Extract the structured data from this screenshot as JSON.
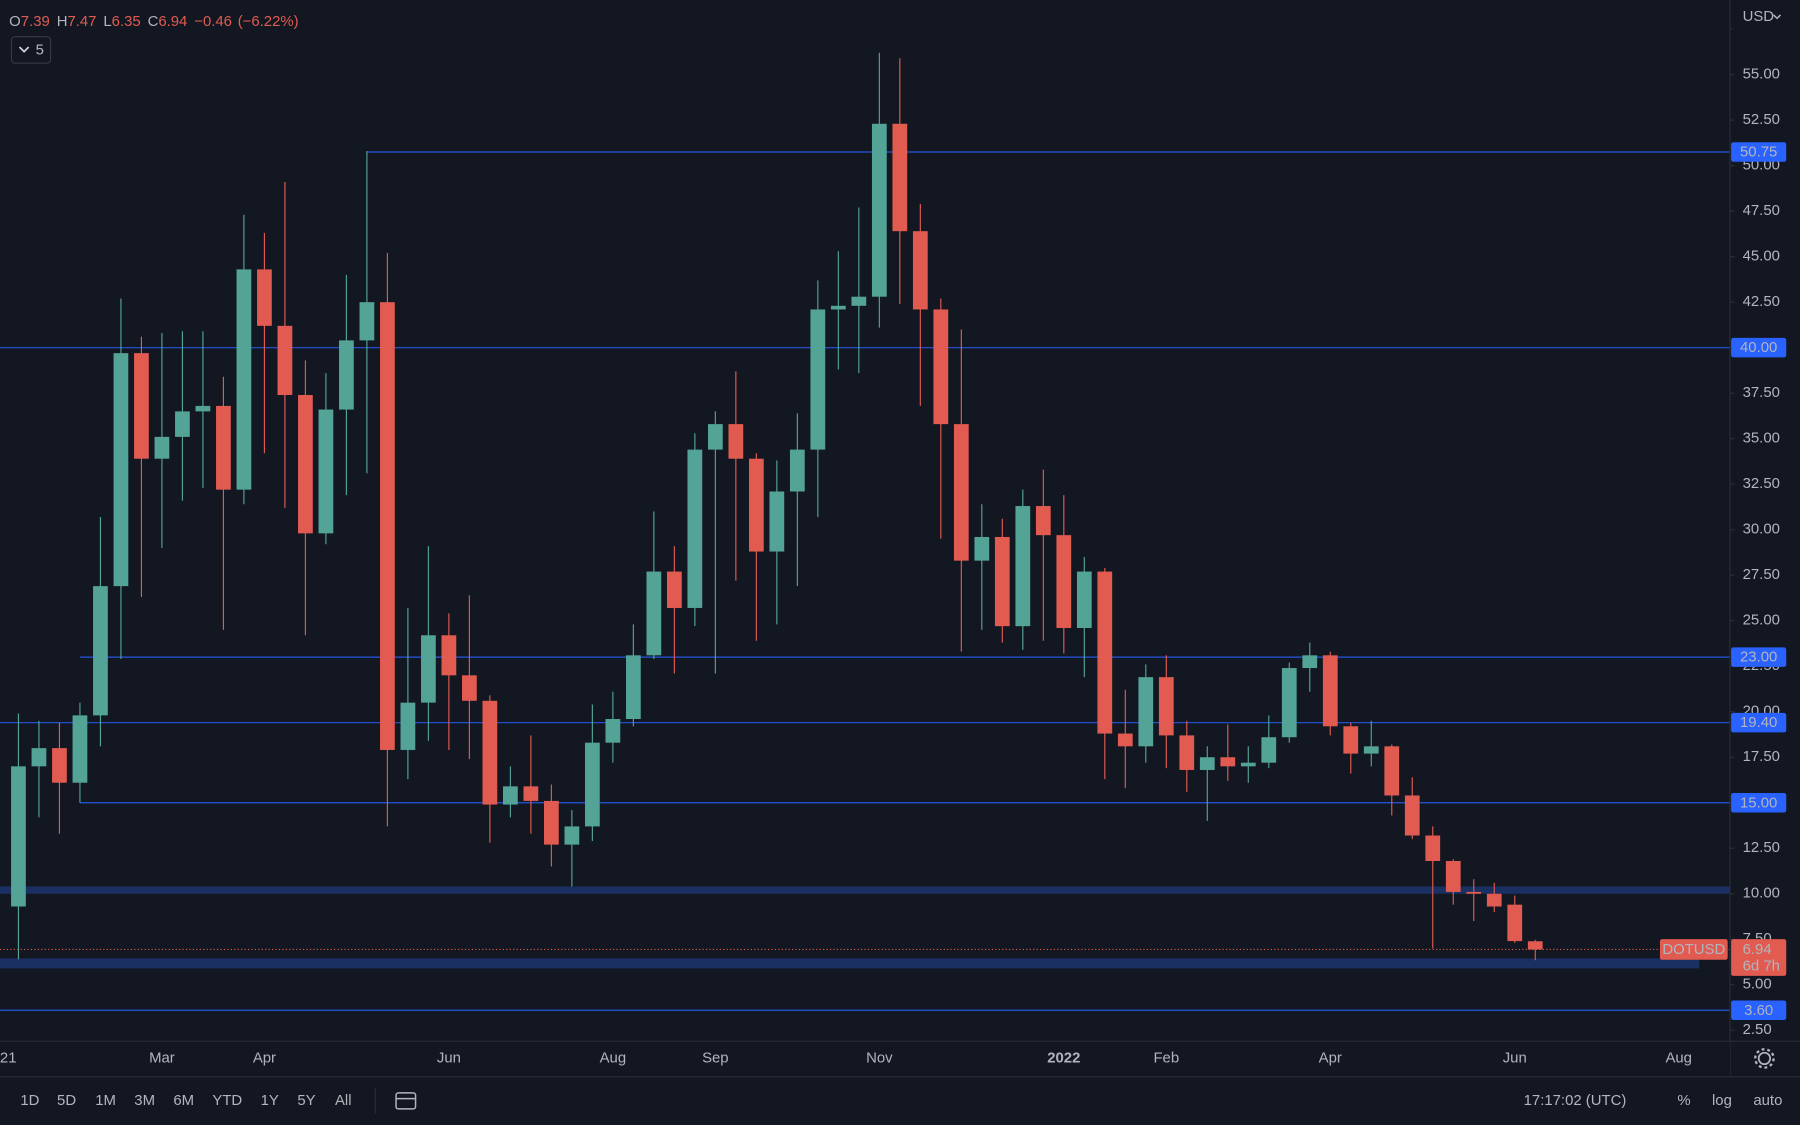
{
  "chart_data": {
    "type": "candlestick",
    "symbol": "DOTUSD",
    "currency": "USD",
    "countdown": "6d 7h",
    "collapsed_indicators": 5,
    "legend_keys": [
      "O",
      "H",
      "L",
      "C"
    ],
    "change": {
      "value": -0.46,
      "label": "−0.46"
    },
    "change_pct": {
      "value": -6.22,
      "label": "(−6.22%)"
    },
    "green": "#53a397",
    "red": "#e15b51",
    "level_color": "#2962ff",
    "open": [
      9.3,
      17.0,
      18.0,
      16.1,
      19.8,
      26.9,
      39.7,
      33.9,
      35.1,
      36.5,
      36.8,
      32.2,
      44.3,
      41.2,
      37.4,
      29.8,
      36.6,
      40.4,
      42.5,
      17.9,
      20.5,
      24.2,
      22.0,
      20.6,
      14.9,
      15.9,
      15.1,
      12.7,
      13.7,
      18.3,
      19.6,
      23.1,
      27.7,
      25.7,
      34.4,
      35.8,
      33.9,
      28.8,
      32.1,
      34.4,
      42.1,
      42.3,
      42.8,
      52.3,
      46.4,
      42.1,
      35.8,
      28.3,
      29.6,
      24.7,
      31.3,
      29.7,
      24.6,
      27.7,
      18.8,
      18.1,
      21.9,
      18.7,
      16.8,
      17.5,
      17.0,
      17.2,
      18.6,
      22.4,
      23.1,
      19.2,
      17.7,
      18.1,
      15.4,
      13.2,
      11.8,
      10.1,
      10.0,
      9.4,
      7.39
    ],
    "high": [
      19.9,
      19.5,
      19.4,
      20.5,
      30.7,
      42.7,
      40.6,
      40.8,
      40.9,
      40.9,
      38.4,
      47.3,
      46.3,
      49.1,
      39.3,
      38.6,
      44.0,
      50.8,
      45.2,
      25.7,
      29.1,
      25.4,
      26.4,
      20.9,
      17.0,
      18.7,
      16.0,
      14.6,
      20.4,
      21.1,
      24.8,
      31.0,
      29.1,
      35.3,
      36.5,
      38.7,
      34.2,
      33.8,
      36.4,
      43.7,
      45.3,
      47.7,
      56.2,
      55.9,
      47.9,
      42.7,
      41.0,
      31.4,
      30.6,
      32.2,
      33.3,
      31.9,
      28.5,
      27.9,
      21.2,
      22.6,
      23.1,
      19.5,
      18.1,
      19.3,
      18.1,
      19.8,
      22.7,
      23.8,
      23.3,
      19.4,
      19.5,
      18.2,
      16.4,
      13.7,
      11.9,
      10.8,
      10.6,
      9.9,
      7.47
    ],
    "low": [
      6.4,
      14.2,
      13.3,
      15.0,
      18.1,
      22.9,
      26.3,
      29.0,
      31.6,
      32.3,
      24.5,
      31.4,
      34.2,
      31.2,
      24.2,
      29.2,
      31.9,
      33.1,
      13.7,
      16.3,
      18.4,
      17.9,
      17.4,
      12.8,
      14.2,
      13.3,
      11.5,
      10.4,
      12.9,
      17.2,
      19.2,
      22.9,
      22.1,
      24.7,
      22.1,
      27.2,
      23.9,
      24.8,
      26.9,
      30.7,
      38.8,
      38.6,
      41.1,
      42.4,
      36.8,
      29.5,
      23.3,
      24.5,
      23.8,
      23.4,
      23.9,
      23.2,
      21.9,
      16.3,
      15.8,
      17.2,
      16.9,
      15.6,
      14.0,
      16.2,
      16.1,
      16.9,
      18.3,
      21.1,
      18.7,
      16.6,
      17.0,
      14.3,
      13.0,
      7.0,
      9.4,
      8.5,
      9.0,
      7.3,
      6.35
    ],
    "close": [
      17.0,
      18.0,
      16.1,
      19.8,
      26.9,
      39.7,
      33.9,
      35.1,
      36.5,
      36.8,
      32.2,
      44.3,
      41.2,
      37.4,
      29.8,
      36.6,
      40.4,
      42.5,
      17.9,
      20.5,
      24.2,
      22.0,
      20.6,
      14.9,
      15.9,
      15.1,
      12.7,
      13.7,
      18.3,
      19.6,
      23.1,
      27.7,
      25.7,
      34.4,
      35.8,
      33.9,
      28.8,
      32.1,
      34.4,
      42.1,
      42.3,
      42.8,
      52.3,
      46.4,
      42.1,
      35.8,
      28.3,
      29.6,
      24.7,
      31.3,
      29.7,
      24.6,
      27.7,
      18.8,
      18.1,
      21.9,
      18.7,
      16.8,
      17.5,
      17.0,
      17.2,
      18.6,
      22.4,
      23.1,
      19.2,
      17.7,
      18.1,
      15.4,
      13.2,
      11.8,
      10.1,
      10.0,
      9.3,
      7.4,
      6.94
    ],
    "xlim": [
      -0.9,
      83.5
    ],
    "xticks": [
      {
        "value": -0.5,
        "label": "21"
      },
      {
        "value": 7,
        "label": "Mar"
      },
      {
        "value": 12,
        "label": "Apr"
      },
      {
        "value": 21,
        "label": "Jun"
      },
      {
        "value": 29,
        "label": "Aug"
      },
      {
        "value": 34,
        "label": "Sep"
      },
      {
        "value": 42,
        "label": "Nov"
      },
      {
        "value": 51,
        "label": "2022"
      },
      {
        "value": 56,
        "label": "Feb"
      },
      {
        "value": 64,
        "label": "Apr"
      },
      {
        "value": 73,
        "label": "Jun"
      },
      {
        "value": 81,
        "label": "Aug"
      }
    ],
    "ylim": [
      1.9,
      59.1
    ],
    "yticks": [
      {
        "value": 2.5,
        "label": "2.50"
      },
      {
        "value": 5,
        "label": "5.00"
      },
      {
        "value": 7.5,
        "label": "7.50"
      },
      {
        "value": 10,
        "label": "10.00"
      },
      {
        "value": 12.5,
        "label": "12.50"
      },
      {
        "value": 15,
        "label": "15.00"
      },
      {
        "value": 17.5,
        "label": "17.50"
      },
      {
        "value": 20,
        "label": "20.00"
      },
      {
        "value": 22.5,
        "label": "22.50"
      },
      {
        "value": 25,
        "label": "25.00"
      },
      {
        "value": 27.5,
        "label": "27.50"
      },
      {
        "value": 30,
        "label": "30.00"
      },
      {
        "value": 32.5,
        "label": "32.50"
      },
      {
        "value": 35,
        "label": "35.00"
      },
      {
        "value": 37.5,
        "label": "37.50"
      },
      {
        "value": 40,
        "label": "40.00"
      },
      {
        "value": 42.5,
        "label": "42.50"
      },
      {
        "value": 45,
        "label": "45.00"
      },
      {
        "value": 47.5,
        "label": "47.50"
      },
      {
        "value": 50,
        "label": "50.00"
      },
      {
        "value": 52.5,
        "label": "52.50"
      },
      {
        "value": 55,
        "label": "55.00"
      },
      {
        "value": 57.5,
        "label": "57.50"
      }
    ],
    "levels": [
      {
        "value": 50.75,
        "label": "50.75",
        "from": 17
      },
      {
        "value": 40,
        "label": "40.00"
      },
      {
        "value": 23,
        "label": "23.00",
        "from": 3
      },
      {
        "value": 19.4,
        "label": "19.40"
      },
      {
        "value": 15,
        "label": "15.00",
        "from": 3
      },
      {
        "value": 3.6,
        "label": "3.60"
      }
    ],
    "zones": [
      {
        "low": 10.0,
        "high": 10.4
      },
      {
        "low": 5.9,
        "high": 6.45,
        "to": 82
      }
    ]
  },
  "toolbar": {
    "intervals": [
      "1D",
      "5D",
      "1M",
      "3M",
      "6M",
      "YTD",
      "1Y",
      "5Y",
      "All"
    ],
    "clock": "17:17:02 (UTC)",
    "options": [
      "%",
      "log",
      "auto"
    ]
  }
}
